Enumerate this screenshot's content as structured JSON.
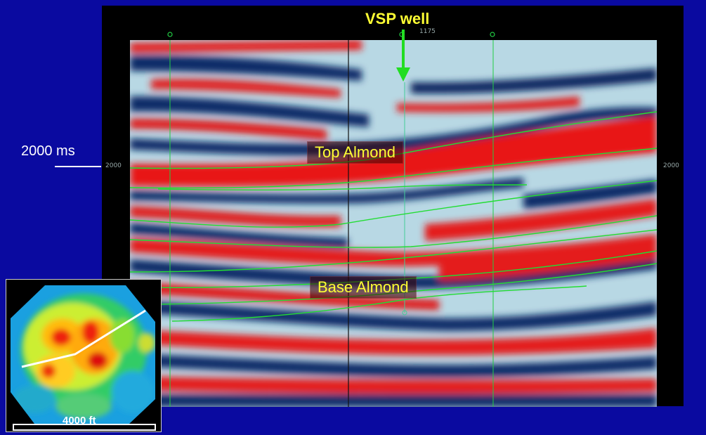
{
  "labels": {
    "vsp_well": "VSP well",
    "top_almond": "Top Almond",
    "base_almond": "Base Almond",
    "time_marker": "2000 ms",
    "inset_scale": "4000 ft"
  },
  "section": {
    "trace_header": "1175",
    "tick_left": "2000",
    "tick_right": "2000"
  },
  "colors": {
    "background": "#0a0aa0",
    "positive_amplitude": "#e0101a",
    "negative_amplitude": "#0a2a6a",
    "horizon": "#22dd33",
    "arrow": "#22dd22",
    "label_text": "#ffff33"
  }
}
